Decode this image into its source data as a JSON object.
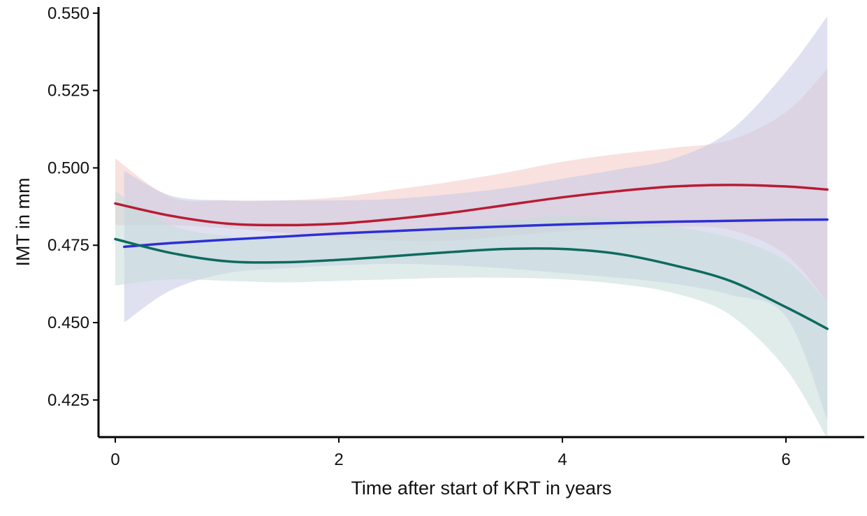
{
  "chart_data": {
    "type": "line",
    "title": "",
    "xlabel": "Time after start of KRT in years",
    "ylabel": "IMT in mm",
    "xlim": [
      -0.15,
      6.7
    ],
    "ylim": [
      0.413,
      0.552
    ],
    "x_ticks": [
      0,
      2,
      4,
      6
    ],
    "x_tick_labels": [
      "0",
      "2",
      "4",
      "6"
    ],
    "y_ticks": [
      0.425,
      0.45,
      0.475,
      0.5,
      0.525,
      0.55
    ],
    "y_tick_labels": [
      "0.425",
      "0.450",
      "0.475",
      "0.500",
      "0.525",
      "0.550"
    ],
    "grid": false,
    "legend": "none",
    "series": [
      {
        "color": "#b81c33",
        "band_color": "#f2c8c4",
        "x": [
          0.0,
          0.5,
          1.0,
          1.5,
          2.0,
          2.5,
          3.0,
          3.5,
          4.0,
          4.5,
          5.0,
          5.5,
          6.0,
          6.37
        ],
        "y": [
          0.4885,
          0.4845,
          0.482,
          0.4815,
          0.482,
          0.4835,
          0.4855,
          0.488,
          0.4905,
          0.4925,
          0.494,
          0.4945,
          0.494,
          0.493
        ],
        "lower": [
          0.4815,
          0.4815,
          0.4805,
          0.479,
          0.4775,
          0.4765,
          0.4765,
          0.478,
          0.4795,
          0.4805,
          0.481,
          0.48,
          0.472,
          0.4565
        ],
        "upper": [
          0.503,
          0.4905,
          0.4895,
          0.4895,
          0.4905,
          0.493,
          0.4955,
          0.4985,
          0.502,
          0.5045,
          0.5065,
          0.509,
          0.518,
          0.532
        ]
      },
      {
        "color": "#2d2fd4",
        "band_color": "#c4c8e6",
        "x": [
          0.08,
          0.5,
          1.0,
          1.5,
          2.0,
          2.5,
          3.0,
          3.5,
          4.0,
          4.5,
          5.0,
          5.5,
          6.0,
          6.37
        ],
        "y": [
          0.4745,
          0.4757,
          0.4768,
          0.4778,
          0.4788,
          0.4796,
          0.4804,
          0.4811,
          0.4817,
          0.4822,
          0.4826,
          0.4829,
          0.4832,
          0.4833
        ],
        "lower": [
          0.45,
          0.4605,
          0.466,
          0.4675,
          0.4685,
          0.469,
          0.4685,
          0.4675,
          0.466,
          0.4645,
          0.4625,
          0.459,
          0.452,
          0.4185
        ],
        "upper": [
          0.499,
          0.491,
          0.4895,
          0.4895,
          0.4895,
          0.49,
          0.4915,
          0.4935,
          0.4965,
          0.4995,
          0.503,
          0.512,
          0.531,
          0.549
        ]
      },
      {
        "color": "#0d6b5e",
        "band_color": "#c5ddd8",
        "x": [
          0.0,
          0.5,
          1.0,
          1.5,
          2.0,
          2.5,
          3.0,
          3.5,
          4.0,
          4.5,
          5.0,
          5.5,
          6.0,
          6.37
        ],
        "y": [
          0.477,
          0.4725,
          0.4698,
          0.4695,
          0.4703,
          0.4715,
          0.4728,
          0.4738,
          0.4738,
          0.4722,
          0.4685,
          0.4635,
          0.455,
          0.448
        ],
        "lower": [
          0.462,
          0.464,
          0.4635,
          0.463,
          0.4635,
          0.464,
          0.4645,
          0.4645,
          0.464,
          0.4625,
          0.4595,
          0.4525,
          0.435,
          0.4125
        ],
        "upper": [
          0.4925,
          0.4815,
          0.478,
          0.4775,
          0.478,
          0.4795,
          0.481,
          0.483,
          0.4845,
          0.4835,
          0.481,
          0.4775,
          0.47,
          0.4565
        ]
      }
    ]
  }
}
